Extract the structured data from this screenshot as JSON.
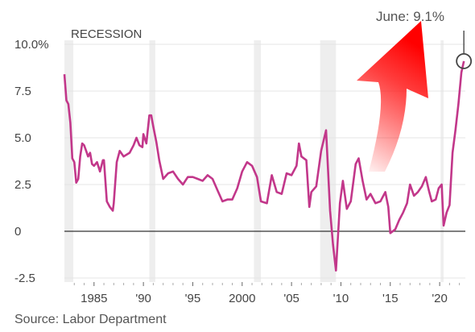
{
  "chart_data": {
    "type": "line",
    "recession_label": "RECESSION",
    "annotation": "June: 9.1%",
    "source": "Source: Labor Department",
    "ylim": [
      -2.5,
      10.0
    ],
    "xlim": [
      1982,
      2022.6
    ],
    "y_ticks": [
      {
        "value": 10.0,
        "label": "10.0%"
      },
      {
        "value": 7.5,
        "label": "7.5"
      },
      {
        "value": 5.0,
        "label": "5.0"
      },
      {
        "value": 2.5,
        "label": "2.5"
      },
      {
        "value": 0,
        "label": "0"
      },
      {
        "value": -2.5,
        "label": "-2.5"
      }
    ],
    "x_ticks": [
      {
        "value": 1985,
        "label": "1985"
      },
      {
        "value": 1990,
        "label": "'90"
      },
      {
        "value": 1995,
        "label": "'95"
      },
      {
        "value": 2000,
        "label": "2000"
      },
      {
        "value": 2005,
        "label": "'05"
      },
      {
        "value": 2010,
        "label": "'10"
      },
      {
        "value": 2015,
        "label": "'15"
      },
      {
        "value": 2020,
        "label": "'20"
      }
    ],
    "recessions": [
      [
        1981.6,
        1982.9
      ],
      [
        1990.6,
        1991.2
      ],
      [
        2001.2,
        2001.9
      ],
      [
        2007.9,
        2009.5
      ],
      [
        2020.1,
        2020.4
      ]
    ],
    "series": [
      {
        "x": [
          1982.0,
          1982.2,
          1982.4,
          1982.6,
          1982.8,
          1983.0,
          1983.2,
          1983.4,
          1983.6,
          1983.8,
          1984.0,
          1984.2,
          1984.4,
          1984.6,
          1984.8,
          1985.0,
          1985.3,
          1985.6,
          1985.9,
          1986.0,
          1986.3,
          1986.6,
          1986.9,
          1987.0,
          1987.3,
          1987.6,
          1988.0,
          1988.3,
          1988.6,
          1989.0,
          1989.3,
          1989.6,
          1989.9,
          1990.0,
          1990.3,
          1990.6,
          1990.8,
          1991.0,
          1991.3,
          1991.6,
          1992.0,
          1992.5,
          1993.0,
          1993.5,
          1994.0,
          1994.5,
          1995.0,
          1995.5,
          1996.0,
          1996.5,
          1997.0,
          1997.5,
          1998.0,
          1998.5,
          1999.0,
          1999.5,
          2000.0,
          2000.5,
          2001.0,
          2001.5,
          2001.9,
          2002.5,
          2003.0,
          2003.5,
          2004.0,
          2004.5,
          2005.0,
          2005.5,
          2005.75,
          2006.0,
          2006.5,
          2006.8,
          2007.0,
          2007.5,
          2008.0,
          2008.5,
          2008.9,
          2009.2,
          2009.5,
          2009.9,
          2010.2,
          2010.6,
          2011.0,
          2011.5,
          2011.8,
          2012.2,
          2012.6,
          2013.0,
          2013.5,
          2014.0,
          2014.5,
          2014.8,
          2015.0,
          2015.5,
          2015.9,
          2016.3,
          2016.7,
          2017.0,
          2017.4,
          2017.8,
          2018.2,
          2018.6,
          2018.9,
          2019.2,
          2019.6,
          2019.9,
          2020.2,
          2020.4,
          2020.7,
          2021.0,
          2021.3,
          2021.6,
          2021.9,
          2022.2,
          2022.45
        ],
        "y": [
          8.4,
          7.0,
          6.8,
          5.8,
          3.9,
          3.7,
          2.6,
          2.8,
          4.0,
          4.7,
          4.6,
          4.3,
          4.0,
          4.2,
          3.6,
          3.5,
          3.7,
          3.2,
          3.8,
          3.8,
          1.6,
          1.3,
          1.1,
          1.5,
          3.7,
          4.3,
          4.0,
          4.1,
          4.2,
          4.6,
          5.0,
          4.6,
          4.5,
          5.2,
          4.7,
          6.2,
          6.2,
          5.6,
          4.8,
          3.8,
          2.8,
          3.1,
          3.2,
          2.8,
          2.5,
          2.9,
          2.9,
          2.8,
          2.7,
          3.0,
          2.8,
          2.2,
          1.6,
          1.7,
          1.7,
          2.3,
          3.2,
          3.7,
          3.5,
          2.9,
          1.6,
          1.5,
          3.0,
          2.1,
          2.0,
          3.1,
          3.0,
          3.5,
          4.7,
          4.0,
          3.8,
          1.3,
          2.1,
          2.4,
          4.3,
          5.4,
          1.1,
          -0.7,
          -2.1,
          1.5,
          2.7,
          1.2,
          1.6,
          3.6,
          3.9,
          2.7,
          1.7,
          2.0,
          1.5,
          1.6,
          2.1,
          1.3,
          -0.1,
          0.1,
          0.6,
          1.0,
          1.5,
          2.5,
          1.9,
          2.1,
          2.4,
          2.9,
          2.2,
          1.6,
          1.7,
          2.3,
          2.5,
          0.3,
          1.0,
          1.4,
          4.2,
          5.4,
          6.8,
          8.5,
          9.1
        ]
      }
    ]
  }
}
